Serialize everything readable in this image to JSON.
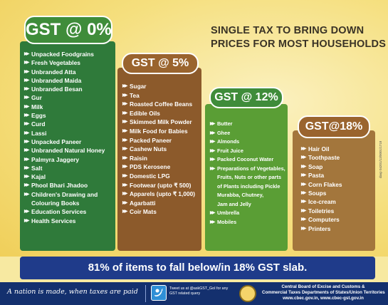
{
  "headline": [
    "SINGLE TAX TO BRING DOWN",
    "PRICES FOR MOST HOUSEHOLDS"
  ],
  "slabs": [
    {
      "label": "GST @ 0%",
      "items": [
        "Unpacked Foodgrains",
        "Fresh Vegetables",
        "Unbranded Atta",
        "Unbranded Maida",
        "Unbranded Besan",
        "Gur",
        "Milk",
        "Eggs",
        "Curd",
        "Lassi",
        "Unpacked Paneer",
        "Unbranded Natural Honey",
        "Palmyra Jaggery",
        "Salt",
        "Kajal",
        "Phool Bhari Jhadoo",
        "Children's Drawing and",
        "Colouring Books",
        "Education Services",
        "Health Services"
      ]
    },
    {
      "label": "GST @ 5%",
      "items": [
        "Sugar",
        "Tea",
        "Roasted Coffee Beans",
        "Edible Oils",
        "Skimmed Milk Powder",
        "Milk Food for Babies",
        "Packed Paneer",
        "Cashew Nuts",
        "Raisin",
        "PDS Kerosene",
        "Domestic LPG",
        "Footwear (upto ₹ 500)",
        "Apparels (upto ₹ 1,000)",
        "Agarbatti",
        "Coir Mats"
      ]
    },
    {
      "label": "GST @ 12%",
      "items": [
        "Butter",
        "Ghee",
        "Almonds",
        "Fruit Juice",
        "Packed Coconut Water",
        "Preparations of Vegetables,",
        "Fruits, Nuts or other parts",
        "of Plants including Pickle",
        "Murabba, Chutney,",
        "Jam and Jelly",
        "Umbrella",
        "Mobiles"
      ]
    },
    {
      "label": "GST@18%",
      "items": [
        "Hair Oil",
        "Toothpaste",
        "Soap",
        "Pasta",
        "Corn Flakes",
        "Soups",
        "Ice-cream",
        "Toiletries",
        "Computers",
        "Printers"
      ]
    }
  ],
  "bullet": "▶▶",
  "side_text": "davp 04201/13/0001/1718",
  "banner": "81% of items to fall below/in 18% GST slab.",
  "footer": {
    "tagline": "A nation is made, when taxes are paid",
    "tweet": [
      "Tweet us at @askGST_GoI for any",
      "GST related query"
    ],
    "org": [
      "Central Board of Excise and Customs &",
      "Commercial Taxes Departments of States/Union Territories",
      "www.cbec.gov.in, www.cbec-gst.gov.in"
    ]
  },
  "icons": {
    "twitter": "twitter-icon",
    "emblem": "cbec-emblem-icon"
  },
  "colors": {
    "green": "#2f7a3a",
    "brown": "#8c5a2b",
    "light_green": "#5a9e35",
    "tan": "#a3763c",
    "banner": "#1f3b8a"
  }
}
